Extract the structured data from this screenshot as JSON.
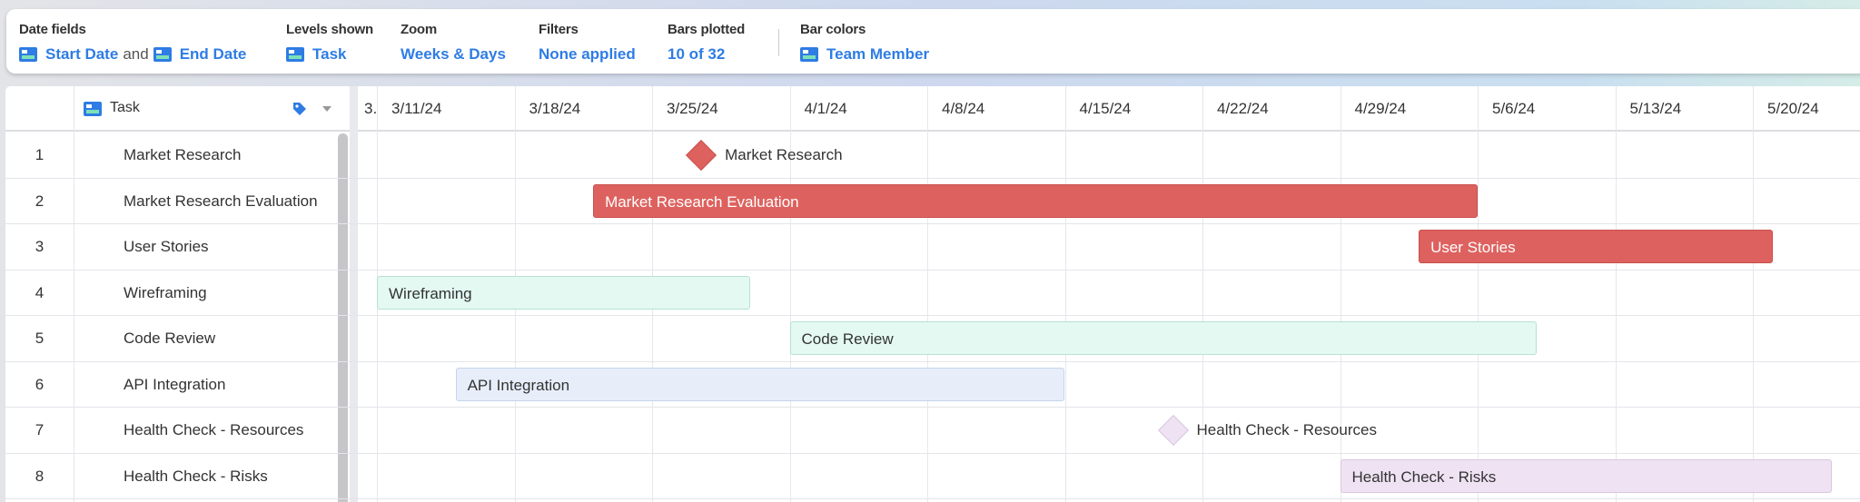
{
  "toolbar": {
    "date_fields": {
      "label": "Date fields",
      "start": "Start Date",
      "joiner": "and",
      "end": "End Date"
    },
    "levels_shown": {
      "label": "Levels shown",
      "value": "Task"
    },
    "zoom": {
      "label": "Zoom",
      "value": "Weeks & Days"
    },
    "filters": {
      "label": "Filters",
      "value": "None applied"
    },
    "bars_plotted": {
      "label": "Bars plotted",
      "value": "10 of 32"
    },
    "bar_colors": {
      "label": "Bar colors",
      "value": "Team Member"
    }
  },
  "table": {
    "column_header": "Task",
    "field_icon": "field-icon",
    "tag_icon": "tag-icon"
  },
  "timeline": {
    "partial_label": "3.",
    "weeks": [
      "3/11/24",
      "3/18/24",
      "3/25/24",
      "4/1/24",
      "4/8/24",
      "4/15/24",
      "4/22/24",
      "4/29/24",
      "5/6/24",
      "5/13/24",
      "5/20/24"
    ]
  },
  "colors": {
    "red": "#dd625f",
    "mint": "#e3f9f2",
    "blue": "#e7eefa",
    "purple": "#efe3f3",
    "accent": "#2e7ce4"
  },
  "tasks": [
    {
      "num": "1",
      "name": "Market Research",
      "type": "milestone",
      "start": "2024-03-27",
      "color": "red"
    },
    {
      "num": "2",
      "name": "Market Research Evaluation",
      "type": "bar",
      "start": "2024-03-22",
      "end": "2024-05-05",
      "color": "red"
    },
    {
      "num": "3",
      "name": "User Stories",
      "type": "bar",
      "start": "2024-05-03",
      "end": "2024-05-20",
      "color": "red"
    },
    {
      "num": "4",
      "name": "Wireframing",
      "type": "bar",
      "start": "2024-03-11",
      "end": "2024-03-29",
      "color": "mint"
    },
    {
      "num": "5",
      "name": "Code Review",
      "type": "bar",
      "start": "2024-04-01",
      "end": "2024-05-08",
      "color": "mint"
    },
    {
      "num": "6",
      "name": "API Integration",
      "type": "bar",
      "start": "2024-03-15",
      "end": "2024-04-14",
      "color": "blue"
    },
    {
      "num": "7",
      "name": "Health Check - Resources",
      "type": "milestone",
      "start": "2024-04-20",
      "color": "purple"
    },
    {
      "num": "8",
      "name": "Health Check - Risks",
      "type": "bar",
      "start": "2024-04-29",
      "end": "2024-05-23",
      "color": "purple"
    }
  ]
}
